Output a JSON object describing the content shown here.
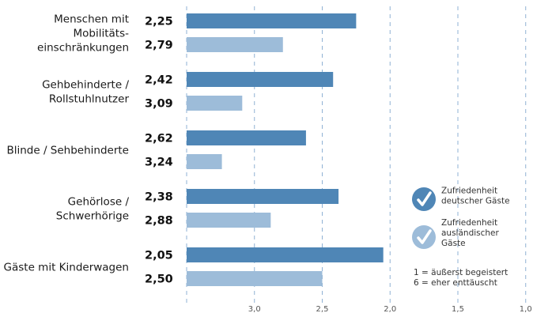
{
  "chart_data": {
    "type": "bar",
    "orientation": "horizontal",
    "x_axis": {
      "reversed": true,
      "range": [
        1.0,
        3.5
      ],
      "ticks": [
        "3,0",
        "2,5",
        "2,0",
        "1,5",
        "1,0"
      ],
      "tick_values": [
        3.0,
        2.5,
        2.0,
        1.5,
        1.0
      ],
      "grid": "dashed-vertical"
    },
    "categories": [
      [
        "Menschen mit",
        "Mobilitäts-",
        "einschränkungen"
      ],
      [
        "Gehbehinderte /",
        "Rollstuhlnutzer"
      ],
      [
        "Blinde / Sehbehinderte"
      ],
      [
        "Gehörlose /",
        "Schwerhörige"
      ],
      [
        "Gäste mit Kinderwagen"
      ]
    ],
    "series": [
      {
        "name": "Zufriedenheit deutscher Gäste",
        "color": "#4f86b6",
        "values": [
          2.25,
          2.42,
          2.62,
          2.38,
          2.05
        ],
        "labels": [
          "2,25",
          "2,42",
          "2,62",
          "2,38",
          "2,05"
        ]
      },
      {
        "name": "Zufriedenheit ausländischer Gäste",
        "color": "#9dbcd9",
        "values": [
          2.79,
          3.09,
          3.24,
          2.88,
          2.5
        ],
        "labels": [
          "2,79",
          "3,09",
          "3,24",
          "2,88",
          "2,50"
        ]
      }
    ],
    "legend": {
      "placement": "bottom-right",
      "items": [
        {
          "lines": [
            "Zufriedenheit",
            "deutscher Gäste"
          ],
          "color": "#4f86b6",
          "icon": "checkmark-circle-icon"
        },
        {
          "lines": [
            "Zufriedenheit",
            "ausländischer",
            "Gäste"
          ],
          "color": "#9dbcd9",
          "icon": "checkmark-circle-icon"
        }
      ],
      "scale_notes": [
        "1 = äußerst begeistert",
        "6 = eher enttäuscht"
      ]
    }
  }
}
